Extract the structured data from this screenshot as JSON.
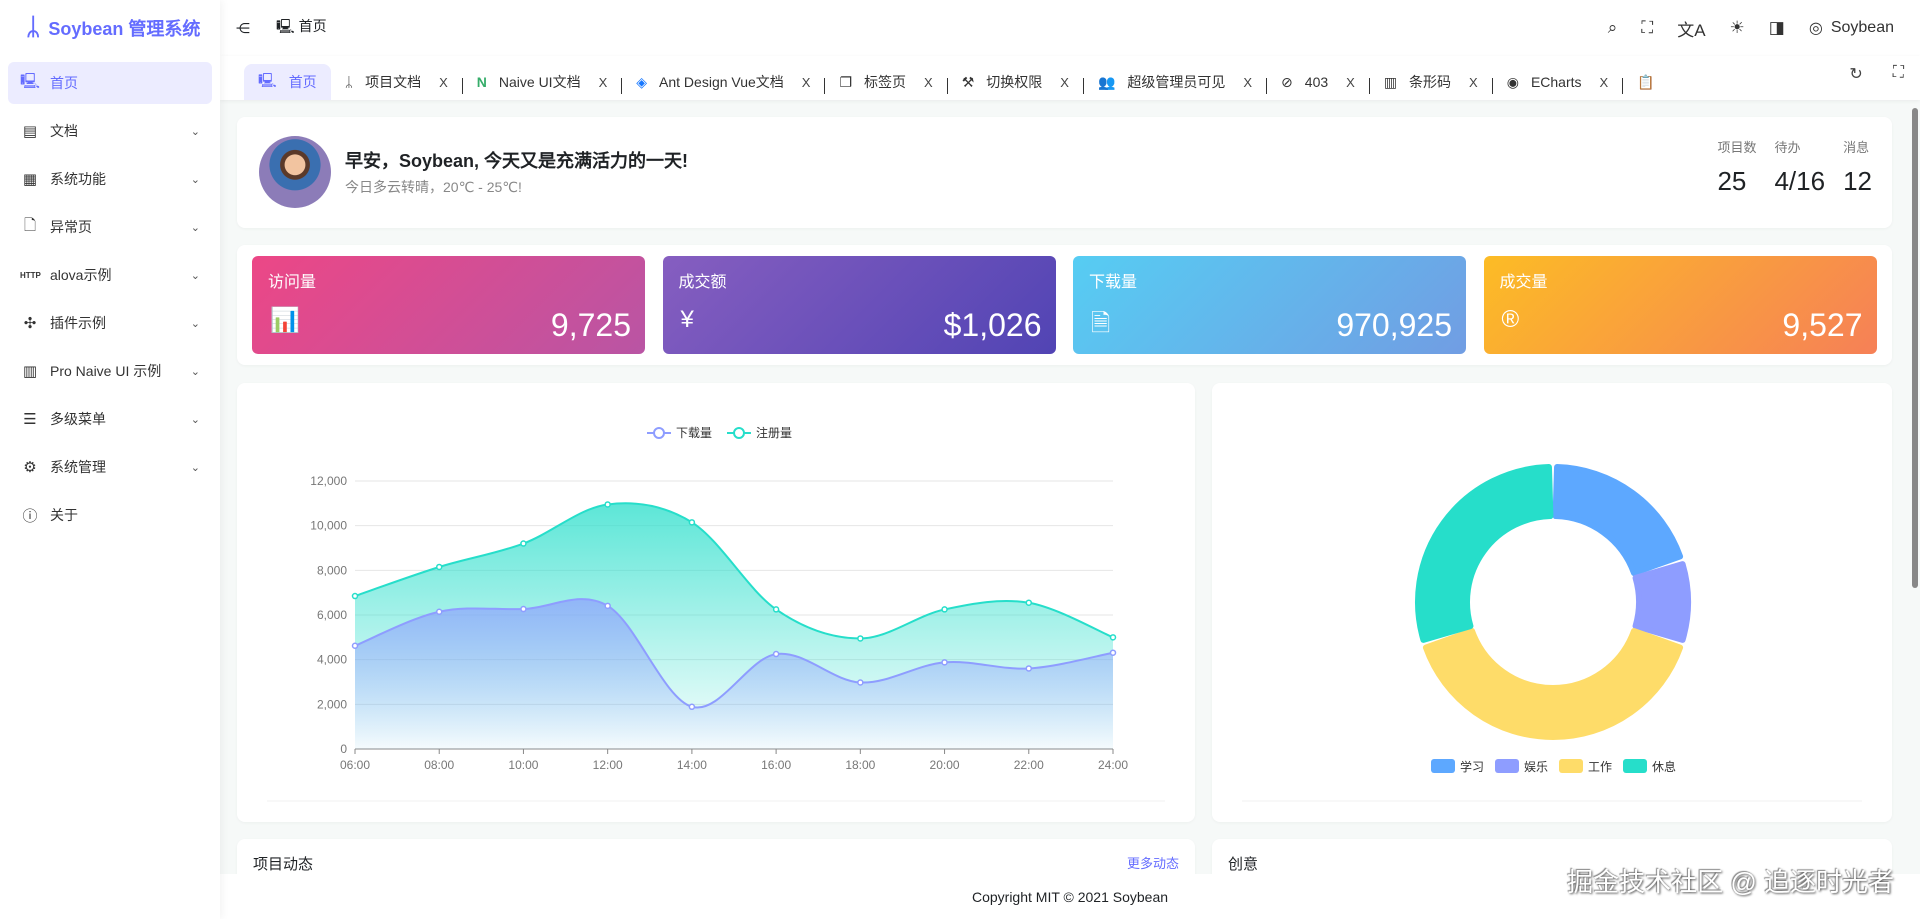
{
  "app": {
    "title": "Soybean 管理系统"
  },
  "sidebar": {
    "items": [
      {
        "label": "首页",
        "icon": "monitor-icon",
        "glyph": "🖳",
        "active": true
      },
      {
        "label": "文档",
        "icon": "document-icon",
        "glyph": "▤"
      },
      {
        "label": "系统功能",
        "icon": "grid-icon",
        "glyph": "▦"
      },
      {
        "label": "异常页",
        "icon": "error-page-icon",
        "glyph": "🗋"
      },
      {
        "label": "alova示例",
        "icon": "http-icon",
        "glyph": "HTTP"
      },
      {
        "label": "插件示例",
        "icon": "puzzle-icon",
        "glyph": "✣"
      },
      {
        "label": "Pro Naive UI 示例",
        "icon": "form-icon",
        "glyph": "▥"
      },
      {
        "label": "多级菜单",
        "icon": "menu-icon",
        "glyph": "☰"
      },
      {
        "label": "系统管理",
        "icon": "settings-monitor-icon",
        "glyph": "⚙"
      },
      {
        "label": "关于",
        "icon": "info-icon",
        "glyph": "ⓘ"
      }
    ]
  },
  "header": {
    "breadcrumb": "首页",
    "user": "Soybean"
  },
  "tabs": [
    {
      "label": "首页",
      "icon": "monitor-icon",
      "glyph": "🖳",
      "active": true
    },
    {
      "label": "项目文档",
      "icon": "logo-icon",
      "glyph": "ᛦ"
    },
    {
      "label": "Naive UI文档",
      "icon": "naive-icon",
      "glyph": "N"
    },
    {
      "label": "Ant Design Vue文档",
      "icon": "antd-icon",
      "glyph": "◈"
    },
    {
      "label": "标签页",
      "icon": "tab-icon",
      "glyph": "❐"
    },
    {
      "label": "切换权限",
      "icon": "tools-icon",
      "glyph": "⚒"
    },
    {
      "label": "超级管理员可见",
      "icon": "users-icon",
      "glyph": "👥"
    },
    {
      "label": "403",
      "icon": "forbidden-icon",
      "glyph": "⊘"
    },
    {
      "label": "条形码",
      "icon": "barcode-icon",
      "glyph": "▥"
    },
    {
      "label": "ECharts",
      "icon": "echarts-icon",
      "glyph": "◉"
    }
  ],
  "tab_close": "X",
  "welcome": {
    "title": "早安，Soybean, 今天又是充满活力的一天!",
    "subtitle": "今日多云转晴，20℃ - 25℃!",
    "stats": [
      {
        "label": "项目数",
        "value": "25"
      },
      {
        "label": "待办",
        "value": "4/16"
      },
      {
        "label": "消息",
        "value": "12"
      }
    ]
  },
  "cards": [
    {
      "title": "访问量",
      "value": "9,725",
      "icon": "bar-chart-icon",
      "glyph": "📊",
      "from": "#ec4786",
      "to": "#b955a4"
    },
    {
      "title": "成交额",
      "value": "$1,026",
      "icon": "yen-icon",
      "glyph": "¥",
      "from": "#865ec0",
      "to": "#5144b4"
    },
    {
      "title": "下载量",
      "value": "970,925",
      "icon": "download-file-icon",
      "glyph": "🗎",
      "from": "#56cdf3",
      "to": "#719de3"
    },
    {
      "title": "成交量",
      "value": "9,527",
      "icon": "registered-icon",
      "glyph": "®",
      "from": "#fcbc25",
      "to": "#f68057"
    }
  ],
  "chart_data": [
    {
      "type": "area",
      "x": [
        "06:00",
        "08:00",
        "10:00",
        "12:00",
        "14:00",
        "16:00",
        "18:00",
        "20:00",
        "22:00",
        "24:00"
      ],
      "ylim": [
        0,
        12000
      ],
      "yticks": [
        "0",
        "2,000",
        "4,000",
        "6,000",
        "8,000",
        "10,000",
        "12,000"
      ],
      "grid": true,
      "legend": "top",
      "series": [
        {
          "name": "下载量",
          "color": "#8e9dff",
          "values": [
            4623,
            6145,
            6268,
            6411,
            1890,
            4251,
            2978,
            3880,
            3606,
            4311
          ]
        },
        {
          "name": "注册量",
          "color": "#26deca",
          "values": [
            6850,
            8150,
            9200,
            10950,
            10150,
            6250,
            4950,
            6250,
            6550,
            5000
          ]
        }
      ]
    },
    {
      "type": "pie",
      "legend": "bottom",
      "categories": [
        "学习",
        "娱乐",
        "工作",
        "休息"
      ],
      "values": [
        20,
        10,
        40,
        30
      ],
      "colors": [
        "#5da8ff",
        "#8e9dff",
        "#fedc69",
        "#26deca"
      ]
    }
  ],
  "bottom": {
    "left_title": "项目动态",
    "left_link": "更多动态",
    "right_title": "创意"
  },
  "footer": "Copyright MIT © 2021 Soybean",
  "watermark": "掘金技术社区 @ 追逐时光者"
}
